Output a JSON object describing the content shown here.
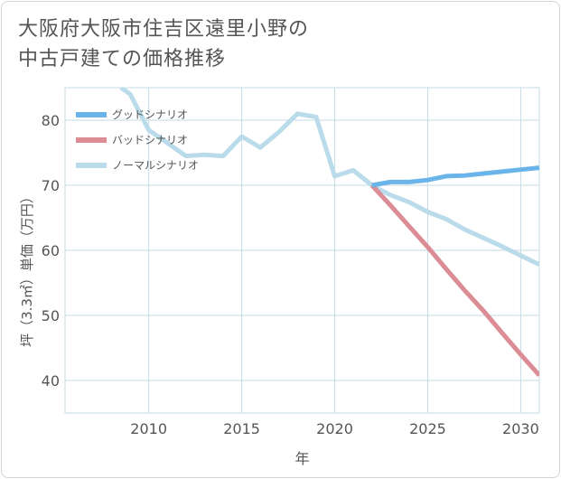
{
  "title": {
    "line1": "大阪府大阪市住吉区遠里小野の",
    "line2": "中古戸建ての価格推移"
  },
  "colors": {
    "good": "#6ab4ea",
    "bad": "#dc8c94",
    "normal": "#badbea",
    "grid": "#c5dbe6",
    "axis_text": "#555555"
  },
  "chart_data": {
    "type": "line",
    "title": "大阪府大阪市住吉区遠里小野の中古戸建ての価格推移",
    "xlabel": "年",
    "ylabel": "坪（3.3㎡）単価（万円）",
    "xlim": [
      2005.5,
      2031
    ],
    "ylim": [
      35,
      85
    ],
    "xticks": [
      2010,
      2015,
      2020,
      2025,
      2030
    ],
    "yticks": [
      40,
      50,
      60,
      70,
      80
    ],
    "grid": true,
    "legend_position": "top-left",
    "series": [
      {
        "name": "グッドシナリオ",
        "color_key": "good",
        "x": [
          2022,
          2023,
          2024,
          2025,
          2026,
          2027,
          2028,
          2029,
          2030,
          2031
        ],
        "values": [
          70.0,
          70.5,
          70.5,
          70.8,
          71.4,
          71.5,
          71.8,
          72.1,
          72.4,
          72.7
        ]
      },
      {
        "name": "バッドシナリオ",
        "color_key": "bad",
        "x": [
          2022,
          2023,
          2024,
          2025,
          2026,
          2027,
          2028,
          2029,
          2030,
          2031
        ],
        "values": [
          70.0,
          66.9,
          63.7,
          60.5,
          57.1,
          53.8,
          50.7,
          47.3,
          44.0,
          40.8
        ]
      },
      {
        "name": "ノーマルシナリオ",
        "color_key": "normal",
        "x": [
          2008.5,
          2009,
          2010,
          2011,
          2012,
          2013,
          2014,
          2015,
          2016,
          2017,
          2018,
          2019,
          2020,
          2021,
          2022,
          2023,
          2024,
          2025,
          2026,
          2027,
          2028,
          2029,
          2030,
          2031
        ],
        "values": [
          85.0,
          84.0,
          78.5,
          76.5,
          74.5,
          74.7,
          74.5,
          77.5,
          75.8,
          78.2,
          81.0,
          80.5,
          71.4,
          72.3,
          70.0,
          68.5,
          67.4,
          65.9,
          64.8,
          63.2,
          61.9,
          60.6,
          59.2,
          57.8
        ]
      }
    ]
  }
}
